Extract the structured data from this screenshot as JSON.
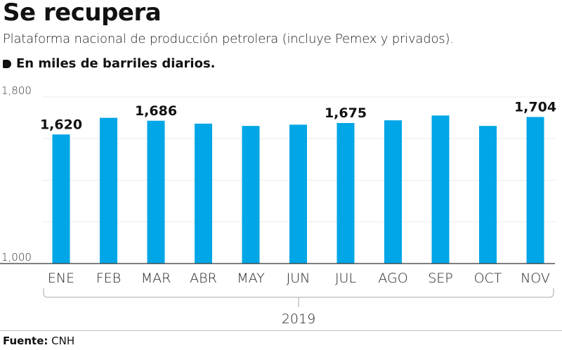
{
  "header": {
    "title": "Se recupera",
    "subtitle": "Plataforma nacional de producción petrolera (incluye Pemex y privados).",
    "unit_note": "En miles de barriles diarios."
  },
  "footer": {
    "source_label": "Fuente:",
    "source_value": "CNH"
  },
  "colors": {
    "bar": "#00A6E6",
    "grid": "#ececec",
    "axis": "#333333"
  },
  "chart_data": {
    "type": "bar",
    "title": "Se recupera",
    "subtitle": "Plataforma nacional de producción petrolera (incluye Pemex y privados).",
    "ylabel": "En miles de barriles diarios.",
    "xlabel": "2019",
    "categories": [
      "ENE",
      "FEB",
      "MAR",
      "ABR",
      "MAY",
      "JUN",
      "JUL",
      "AGO",
      "SEP",
      "OCT",
      "NOV"
    ],
    "values": [
      1620,
      1700,
      1686,
      1672,
      1661,
      1667,
      1675,
      1688,
      1711,
      1661,
      1704
    ],
    "data_labels": [
      {
        "category": "ENE",
        "label": "1,620"
      },
      {
        "category": "MAR",
        "label": "1,686"
      },
      {
        "category": "JUL",
        "label": "1,675"
      },
      {
        "category": "NOV",
        "label": "1,704"
      }
    ],
    "ylim": [
      1000,
      1800
    ],
    "yticks": [
      {
        "value": 1000,
        "label": "1,000"
      },
      {
        "value": 1800,
        "label": "1,800"
      }
    ],
    "gridlines": [
      1200,
      1400,
      1600,
      1800
    ],
    "grid": true,
    "group_label": "2019"
  }
}
